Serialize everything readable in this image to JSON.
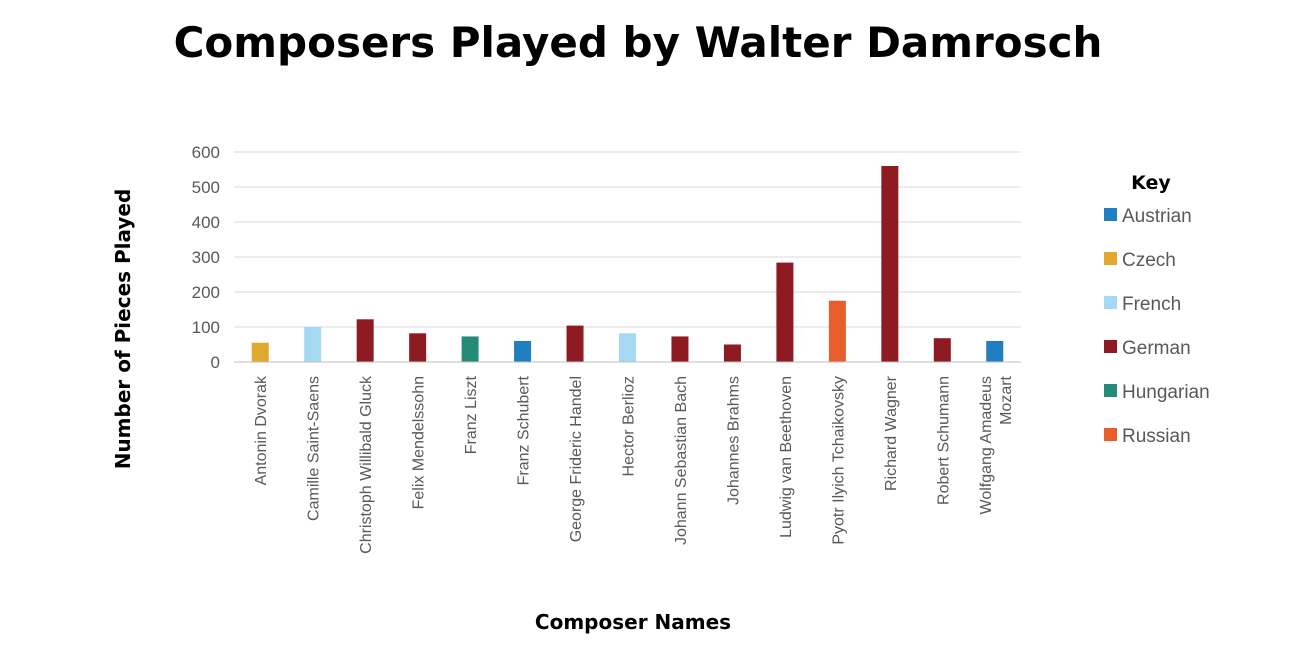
{
  "chart_data": {
    "type": "bar",
    "title": "Composers Played by Walter Damrosch",
    "xlabel": "Composer Names",
    "ylabel": "Number of Pieces Played",
    "ylim": [
      0,
      600
    ],
    "yticks": [
      0,
      100,
      200,
      300,
      400,
      500,
      600
    ],
    "grid": true,
    "legend_title": "Key",
    "legend_position": "right",
    "groups": [
      {
        "name": "Austrian",
        "color": "#1F7FC0"
      },
      {
        "name": "Czech",
        "color": "#E0A82E"
      },
      {
        "name": "French",
        "color": "#A5D8F3"
      },
      {
        "name": "German",
        "color": "#8E1B22"
      },
      {
        "name": "Hungarian",
        "color": "#238B76"
      },
      {
        "name": "Russian",
        "color": "#E85D2C"
      }
    ],
    "categories": [
      {
        "label": [
          "Antonin Dvorak"
        ],
        "value": 55,
        "group": "Czech"
      },
      {
        "label": [
          "Camille Saint-Saens"
        ],
        "value": 100,
        "group": "French"
      },
      {
        "label": [
          "Christoph Willibald Gluck"
        ],
        "value": 122,
        "group": "German"
      },
      {
        "label": [
          "Felix Mendelssohn"
        ],
        "value": 82,
        "group": "German"
      },
      {
        "label": [
          "Franz Liszt"
        ],
        "value": 73,
        "group": "Hungarian"
      },
      {
        "label": [
          "Franz Schubert"
        ],
        "value": 60,
        "group": "Austrian"
      },
      {
        "label": [
          "George Frideric Handel"
        ],
        "value": 104,
        "group": "German"
      },
      {
        "label": [
          "Hector Berlioz"
        ],
        "value": 82,
        "group": "French"
      },
      {
        "label": [
          "Johann Sebastian Bach"
        ],
        "value": 73,
        "group": "German"
      },
      {
        "label": [
          "Johannes Brahms"
        ],
        "value": 50,
        "group": "German"
      },
      {
        "label": [
          "Ludwig van Beethoven"
        ],
        "value": 284,
        "group": "German"
      },
      {
        "label": [
          "Pyotr Ilyich Tchaikovsky"
        ],
        "value": 175,
        "group": "Russian"
      },
      {
        "label": [
          "Richard Wagner"
        ],
        "value": 560,
        "group": "German"
      },
      {
        "label": [
          "Robert Schumann"
        ],
        "value": 68,
        "group": "German"
      },
      {
        "label": [
          "Wolfgang Amadeus",
          "Mozart"
        ],
        "value": 60,
        "group": "Austrian"
      }
    ]
  }
}
